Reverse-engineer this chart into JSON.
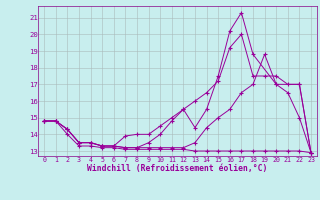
{
  "xlabel": "Windchill (Refroidissement éolien,°C)",
  "bg_color": "#c8eeee",
  "grid_color": "#aabbbb",
  "line_color": "#990099",
  "spine_color": "#880088",
  "xmin": -0.5,
  "xmax": 23.5,
  "ymin": 12.7,
  "ymax": 21.7,
  "yticks": [
    13,
    14,
    15,
    16,
    17,
    18,
    19,
    20,
    21
  ],
  "xticks": [
    0,
    1,
    2,
    3,
    4,
    5,
    6,
    7,
    8,
    9,
    10,
    11,
    12,
    13,
    14,
    15,
    16,
    17,
    18,
    19,
    20,
    21,
    22,
    23
  ],
  "line1": {
    "x": [
      0,
      1,
      2,
      3,
      4,
      5,
      6,
      7,
      8,
      9,
      10,
      11,
      12,
      13,
      14,
      15,
      16,
      17,
      18,
      19,
      20,
      21,
      22,
      23
    ],
    "y": [
      14.8,
      14.8,
      14.0,
      13.3,
      13.3,
      13.2,
      13.2,
      13.1,
      13.1,
      13.1,
      13.1,
      13.1,
      13.1,
      13.0,
      13.0,
      13.0,
      13.0,
      13.0,
      13.0,
      13.0,
      13.0,
      13.0,
      13.0,
      12.9
    ]
  },
  "line2": {
    "x": [
      0,
      1,
      2,
      3,
      4,
      5,
      6,
      7,
      8,
      9,
      10,
      11,
      12,
      13,
      14,
      15,
      16,
      17,
      18,
      19,
      20,
      21,
      22,
      23
    ],
    "y": [
      14.8,
      14.8,
      14.3,
      13.5,
      13.5,
      13.3,
      13.3,
      13.2,
      13.2,
      13.2,
      13.2,
      13.2,
      13.2,
      13.5,
      14.4,
      15.0,
      15.5,
      16.5,
      17.0,
      18.8,
      17.0,
      16.5,
      15.0,
      12.9
    ]
  },
  "line3": {
    "x": [
      0,
      1,
      2,
      3,
      4,
      5,
      6,
      7,
      8,
      9,
      10,
      11,
      12,
      13,
      14,
      15,
      16,
      17,
      18,
      19,
      20,
      21,
      22,
      23
    ],
    "y": [
      14.8,
      14.8,
      14.3,
      13.5,
      13.5,
      13.3,
      13.3,
      13.9,
      14.0,
      14.0,
      14.5,
      15.0,
      15.5,
      16.0,
      16.5,
      17.2,
      19.2,
      20.0,
      17.5,
      17.5,
      17.5,
      17.0,
      17.0,
      12.9
    ]
  },
  "line4": {
    "x": [
      0,
      1,
      2,
      3,
      4,
      5,
      6,
      7,
      8,
      9,
      10,
      11,
      12,
      13,
      14,
      15,
      16,
      17,
      18,
      20,
      22,
      23
    ],
    "y": [
      14.8,
      14.8,
      14.3,
      13.5,
      13.5,
      13.3,
      13.3,
      13.2,
      13.2,
      13.5,
      14.0,
      14.8,
      15.5,
      14.4,
      15.5,
      17.5,
      20.2,
      21.3,
      18.8,
      17.0,
      17.0,
      12.9
    ]
  }
}
